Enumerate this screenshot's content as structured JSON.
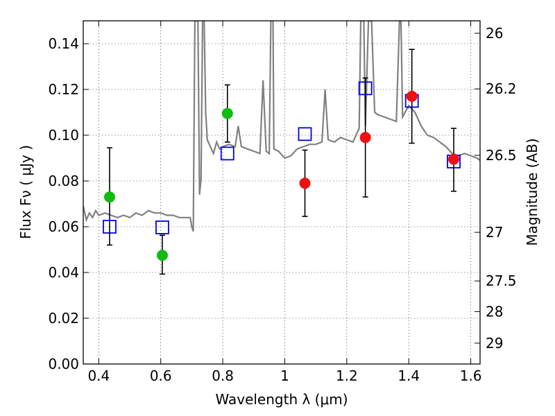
{
  "chart_data": {
    "type": "scatter",
    "title": "",
    "xlabel": "Wavelength  λ (μm)",
    "ylabel": "Flux  Fν  ( μJy )",
    "ylabel2": "Magnitude (AB)",
    "xlim": [
      0.35,
      1.63
    ],
    "ylim": [
      0.0,
      0.15
    ],
    "x_ticks": [
      0.4,
      0.6,
      0.8,
      1.0,
      1.2,
      1.4,
      1.6
    ],
    "x_tick_labels": [
      "0.4",
      "0.6",
      "0.8",
      "1",
      "1.2",
      "1.4",
      "1.6"
    ],
    "y_ticks": [
      0.0,
      0.02,
      0.04,
      0.06,
      0.08,
      0.1,
      0.12,
      0.14
    ],
    "y_tick_labels": [
      "0.00",
      "0.02",
      "0.04",
      "0.06",
      "0.08",
      "0.10",
      "0.12",
      "0.14"
    ],
    "mag_ticks": [
      26,
      26.2,
      26.5,
      27,
      27.5,
      28,
      29
    ],
    "mag_tick_labels": [
      "26",
      "26.2",
      "26.5",
      "27",
      "27.5",
      "28",
      "29"
    ],
    "grid": true,
    "colors": {
      "model": "#808080",
      "green": "#11bb11",
      "red": "#ee1111",
      "blue": "#0000ee",
      "errorbar": "#000000"
    },
    "series": [
      {
        "kind": "model-spectrum",
        "points": [
          [
            0.35,
            0.069
          ],
          [
            0.36,
            0.063
          ],
          [
            0.37,
            0.066
          ],
          [
            0.38,
            0.064
          ],
          [
            0.39,
            0.067
          ],
          [
            0.4,
            0.065
          ],
          [
            0.42,
            0.066
          ],
          [
            0.44,
            0.065
          ],
          [
            0.46,
            0.064
          ],
          [
            0.48,
            0.065
          ],
          [
            0.5,
            0.064
          ],
          [
            0.52,
            0.066
          ],
          [
            0.54,
            0.065
          ],
          [
            0.56,
            0.067
          ],
          [
            0.58,
            0.066
          ],
          [
            0.6,
            0.066
          ],
          [
            0.62,
            0.065
          ],
          [
            0.64,
            0.065
          ],
          [
            0.66,
            0.064
          ],
          [
            0.68,
            0.064
          ],
          [
            0.695,
            0.064
          ],
          [
            0.7,
            0.06
          ],
          [
            0.705,
            0.058
          ],
          [
            0.71,
            0.15
          ],
          [
            0.72,
            0.15
          ],
          [
            0.725,
            0.074
          ],
          [
            0.73,
            0.081
          ],
          [
            0.735,
            0.15
          ],
          [
            0.74,
            0.15
          ],
          [
            0.745,
            0.11
          ],
          [
            0.75,
            0.098
          ],
          [
            0.76,
            0.095
          ],
          [
            0.77,
            0.092
          ],
          [
            0.78,
            0.097
          ],
          [
            0.79,
            0.094
          ],
          [
            0.8,
            0.095
          ],
          [
            0.82,
            0.096
          ],
          [
            0.84,
            0.095
          ],
          [
            0.85,
            0.104
          ],
          [
            0.86,
            0.095
          ],
          [
            0.88,
            0.094
          ],
          [
            0.9,
            0.093
          ],
          [
            0.92,
            0.092
          ],
          [
            0.93,
            0.124
          ],
          [
            0.94,
            0.093
          ],
          [
            0.95,
            0.092
          ],
          [
            0.955,
            0.15
          ],
          [
            0.962,
            0.15
          ],
          [
            0.965,
            0.094
          ],
          [
            0.98,
            0.093
          ],
          [
            1.0,
            0.09
          ],
          [
            1.02,
            0.091
          ],
          [
            1.04,
            0.094
          ],
          [
            1.06,
            0.095
          ],
          [
            1.08,
            0.096
          ],
          [
            1.1,
            0.096
          ],
          [
            1.12,
            0.097
          ],
          [
            1.13,
            0.12
          ],
          [
            1.14,
            0.098
          ],
          [
            1.16,
            0.097
          ],
          [
            1.18,
            0.099
          ],
          [
            1.2,
            0.098
          ],
          [
            1.22,
            0.097
          ],
          [
            1.24,
            0.103
          ],
          [
            1.245,
            0.15
          ],
          [
            1.255,
            0.15
          ],
          [
            1.26,
            0.104
          ],
          [
            1.27,
            0.15
          ],
          [
            1.28,
            0.15
          ],
          [
            1.29,
            0.11
          ],
          [
            1.3,
            0.109
          ],
          [
            1.32,
            0.108
          ],
          [
            1.34,
            0.107
          ],
          [
            1.36,
            0.106
          ],
          [
            1.37,
            0.15
          ],
          [
            1.375,
            0.15
          ],
          [
            1.38,
            0.108
          ],
          [
            1.4,
            0.113
          ],
          [
            1.42,
            0.11
          ],
          [
            1.44,
            0.104
          ],
          [
            1.46,
            0.1
          ],
          [
            1.48,
            0.099
          ],
          [
            1.5,
            0.097
          ],
          [
            1.52,
            0.095
          ],
          [
            1.54,
            0.092
          ],
          [
            1.56,
            0.091
          ],
          [
            1.58,
            0.092
          ],
          [
            1.6,
            0.091
          ],
          [
            1.62,
            0.09
          ],
          [
            1.63,
            0.089
          ]
        ]
      },
      {
        "kind": "green-photometry",
        "points": [
          {
            "x": 0.435,
            "y": 0.073,
            "lo": 0.052,
            "hi": 0.0945
          },
          {
            "x": 0.605,
            "y": 0.0475,
            "lo": 0.0393,
            "hi": 0.0563
          },
          {
            "x": 0.815,
            "y": 0.1095,
            "lo": 0.097,
            "hi": 0.122
          }
        ]
      },
      {
        "kind": "red-photometry",
        "points": [
          {
            "x": 1.065,
            "y": 0.079,
            "lo": 0.0645,
            "hi": 0.0935
          },
          {
            "x": 1.26,
            "y": 0.099,
            "lo": 0.073,
            "hi": 0.125
          },
          {
            "x": 1.41,
            "y": 0.117,
            "lo": 0.0965,
            "hi": 0.1375
          },
          {
            "x": 1.545,
            "y": 0.0895,
            "lo": 0.0755,
            "hi": 0.103
          }
        ]
      },
      {
        "kind": "model-bandpass",
        "points": [
          {
            "x": 0.435,
            "y": 0.06
          },
          {
            "x": 0.605,
            "y": 0.0597
          },
          {
            "x": 0.815,
            "y": 0.092
          },
          {
            "x": 1.065,
            "y": 0.1005
          },
          {
            "x": 1.26,
            "y": 0.1205
          },
          {
            "x": 1.41,
            "y": 0.115
          },
          {
            "x": 1.545,
            "y": 0.0885
          }
        ]
      }
    ]
  }
}
